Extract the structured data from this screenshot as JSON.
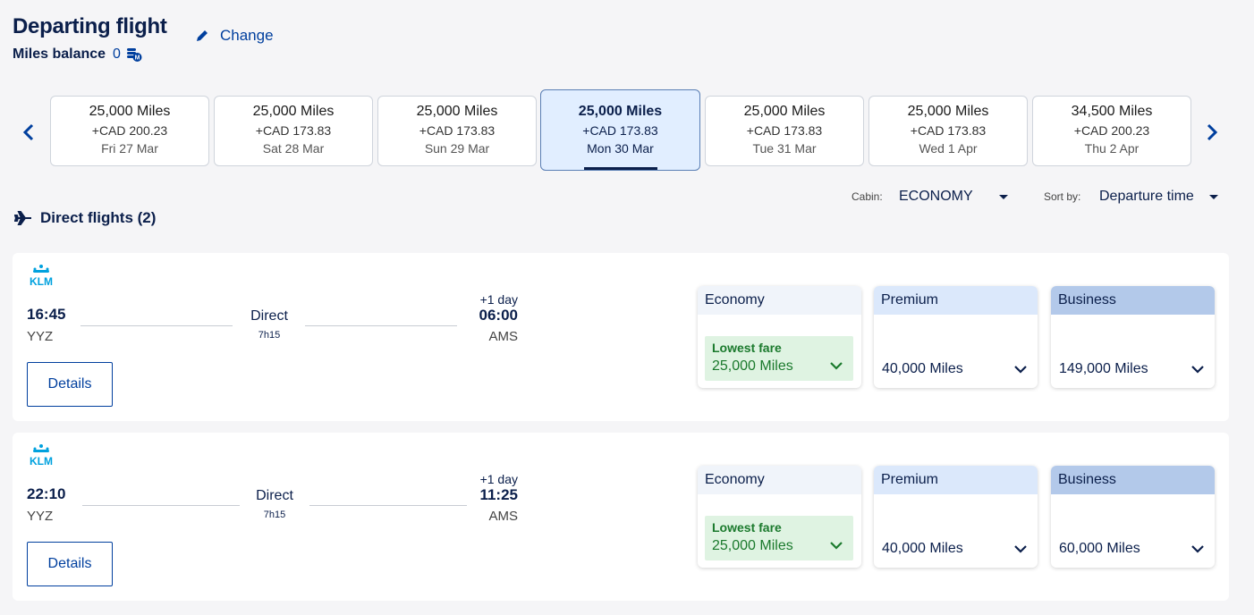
{
  "header": {
    "title": "Departing flight",
    "miles_label": "Miles balance",
    "miles_value": "0",
    "change_label": "Change"
  },
  "dates": [
    {
      "miles": "25,000 Miles",
      "cad": "+CAD 200.23",
      "date": "Fri 27 Mar",
      "selected": false
    },
    {
      "miles": "25,000 Miles",
      "cad": "+CAD 173.83",
      "date": "Sat 28 Mar",
      "selected": false
    },
    {
      "miles": "25,000 Miles",
      "cad": "+CAD 173.83",
      "date": "Sun 29 Mar",
      "selected": false
    },
    {
      "miles": "25,000 Miles",
      "cad": "+CAD 173.83",
      "date": "Mon 30 Mar",
      "selected": true
    },
    {
      "miles": "25,000 Miles",
      "cad": "+CAD 173.83",
      "date": "Tue 31 Mar",
      "selected": false
    },
    {
      "miles": "25,000 Miles",
      "cad": "+CAD 173.83",
      "date": "Wed 1 Apr",
      "selected": false
    },
    {
      "miles": "34,500 Miles",
      "cad": "+CAD 200.23",
      "date": "Thu 2 Apr",
      "selected": false
    }
  ],
  "filters": {
    "cabin_label": "Cabin:",
    "cabin_value": "ECONOMY",
    "sort_label": "Sort by:",
    "sort_value": "Departure time"
  },
  "section": {
    "direct_title": "Direct flights (2)"
  },
  "flights": [
    {
      "dep_time": "16:45",
      "dep_code": "YYZ",
      "arr_time": "06:00",
      "arr_code": "AMS",
      "plus_day": "+1 day",
      "stop_label": "Direct",
      "duration": "7h15",
      "details_label": "Details",
      "fares": {
        "economy": {
          "label": "Economy",
          "lowest_label": "Lowest fare",
          "miles": "25,000 Miles"
        },
        "premium": {
          "label": "Premium",
          "miles": "40,000 Miles"
        },
        "business": {
          "label": "Business",
          "miles": "149,000 Miles"
        }
      }
    },
    {
      "dep_time": "22:10",
      "dep_code": "YYZ",
      "arr_time": "11:25",
      "arr_code": "AMS",
      "plus_day": "+1 day",
      "stop_label": "Direct",
      "duration": "7h15",
      "details_label": "Details",
      "fares": {
        "economy": {
          "label": "Economy",
          "lowest_label": "Lowest fare",
          "miles": "25,000 Miles"
        },
        "premium": {
          "label": "Premium",
          "miles": "40,000 Miles"
        },
        "business": {
          "label": "Business",
          "miles": "60,000 Miles"
        }
      }
    }
  ],
  "colors": {
    "primary_navy": "#0b1f4b",
    "link_blue": "#003f9e",
    "selected_bg": "#e1eeff",
    "lowest_green": "#1b7a2d",
    "lowest_bg": "#dff3e2",
    "klm_blue": "#00a1de"
  }
}
